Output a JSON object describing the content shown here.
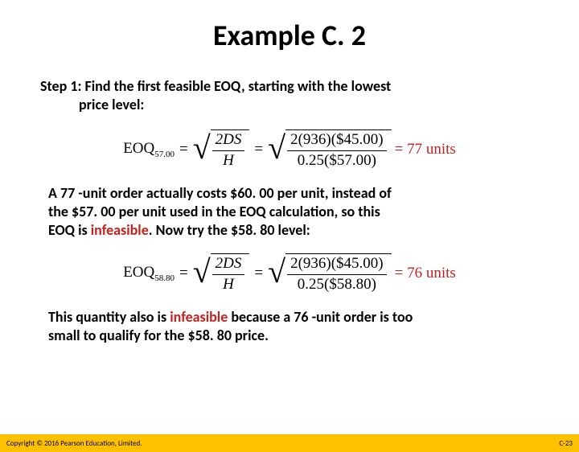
{
  "title": "Example C. 2",
  "step1": {
    "label": "Step 1:",
    "text_line1": "Find the first feasible EOQ, starting with the lowest",
    "text_line2": "price level:"
  },
  "formula1": {
    "label": "EOQ",
    "subscript": "57.00",
    "frac_num": "2DS",
    "frac_den": "H",
    "num2": "2(936)($45.00)",
    "den2": "0.25($57.00)",
    "result": "= 77 units"
  },
  "para1": {
    "line1": "A 77 -unit order actually costs $60. 00 per unit, instead of",
    "line2": "the $57. 00 per unit used in the EOQ calculation, so this",
    "line3_a": "EOQ is ",
    "line3_red": "infeasible",
    "line3_b": ". Now try the $58. 80 level:"
  },
  "formula2": {
    "label": "EOQ",
    "subscript": "58.80",
    "frac_num": "2DS",
    "frac_den": "H",
    "num2": "2(936)($45.00)",
    "den2": "0.25($58.80)",
    "result": "= 76 units"
  },
  "para2": {
    "line1_a": "This quantity also is ",
    "line1_red": "infeasible",
    "line1_b": " because a 76 -unit order is too",
    "line2": "small to qualify for the $58. 80 price."
  },
  "footer": {
    "copyright": "Copyright © 2016 Pearson Education, Limited.",
    "page": "C-23"
  },
  "colors": {
    "red": "#c8201e",
    "footer_bg": "#ffc000",
    "text": "#000000",
    "background": "#ffffff"
  }
}
